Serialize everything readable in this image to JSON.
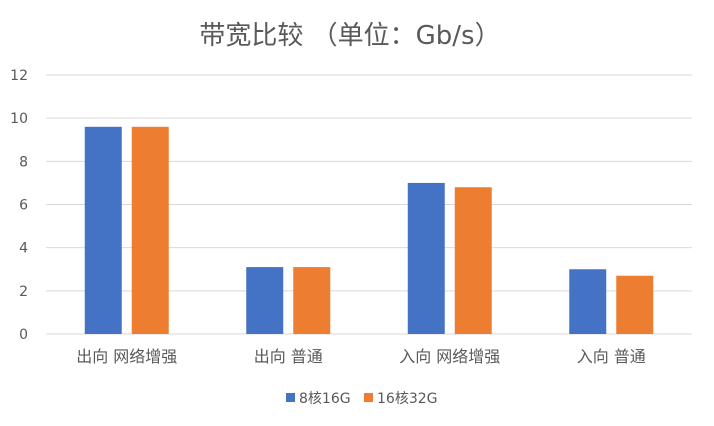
{
  "chart_data": {
    "type": "bar",
    "title": "带宽比较 （单位：Gb/s）",
    "xlabel": "",
    "ylabel": "",
    "categories": [
      "出向 网络增强",
      "出向 普通",
      "入向 网络增强",
      "入向 普通"
    ],
    "series": [
      {
        "name": "8核16G",
        "values": [
          9.6,
          3.1,
          7.0,
          3.0
        ],
        "color": "#4472c4"
      },
      {
        "name": "16核32G",
        "values": [
          9.6,
          3.1,
          6.8,
          2.7
        ],
        "color": "#ed7d31"
      }
    ],
    "ylim": [
      0,
      12
    ],
    "yticks": [
      "0",
      "2",
      "4",
      "6",
      "8",
      "10",
      "12"
    ],
    "grid": true,
    "legend_position": "bottom",
    "gridline_color": "#d9d9d9"
  }
}
